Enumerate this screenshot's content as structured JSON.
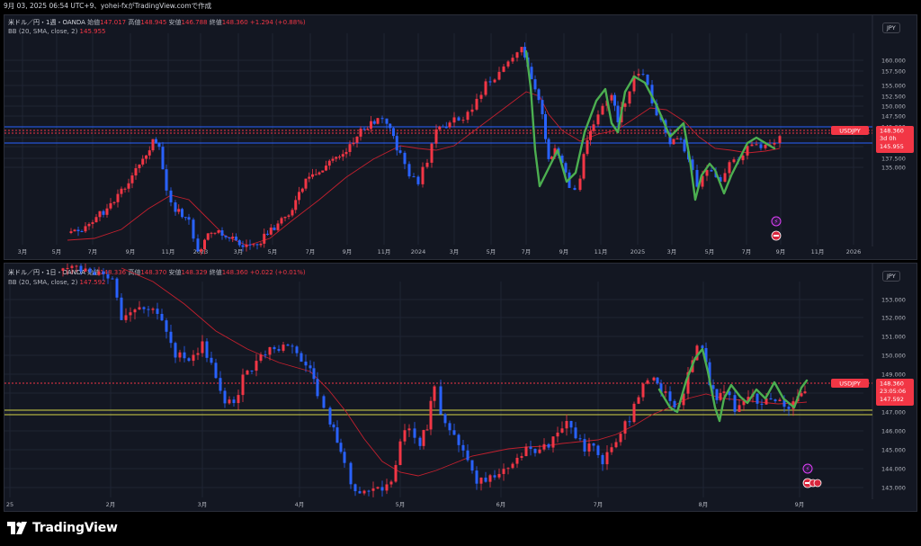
{
  "topbar": {
    "text": "9月 03, 2025 06:54 UTC+9、yohei-fxがTradingView.comで作成"
  },
  "panes": [
    {
      "id": "weekly",
      "legend": {
        "symbol": "米ドル／円・1週・OANDA",
        "open_l": "始値",
        "open": "147.017",
        "high_l": "高値",
        "high": "148.945",
        "low_l": "安値",
        "low": "146.788",
        "close_l": "終値",
        "close": "148.360",
        "change": "+1.294 (+0.88%)"
      },
      "bb": {
        "label": "BB (20, SMA, close, 2)",
        "value": "145.955"
      },
      "currency": "JPY",
      "yaxis": [
        "160.000",
        "157.500",
        "155.000",
        "152.500",
        "150.000",
        "147.500",
        "145.000",
        "142.500",
        "140.000",
        "137.500",
        "135.000",
        "132.500"
      ],
      "xaxis": [
        "3月",
        "5月",
        "7月",
        "9月",
        "11月",
        "2023",
        "3月",
        "5月",
        "7月",
        "9月",
        "11月",
        "2024",
        "3月",
        "5月",
        "7月",
        "9月",
        "11月",
        "2025",
        "3月",
        "5月",
        "7月",
        "9月",
        "11月",
        "2026"
      ],
      "price_tag": {
        "symbol": "USDJPY",
        "price": "148.360",
        "countdown": "3d 0h",
        "bb": "145.955"
      }
    },
    {
      "id": "daily",
      "legend": {
        "symbol": "米ドル／円・1日・OANDA",
        "open_l": "始値",
        "open": "148.336",
        "high_l": "高値",
        "high": "148.370",
        "low_l": "安値",
        "low": "148.329",
        "close_l": "終値",
        "close": "148.360",
        "change": "+0.022 (+0.01%)"
      },
      "bb": {
        "label": "BB (20, SMA, close, 2)",
        "value": "147.592"
      },
      "currency": "JPY",
      "yaxis": [
        "153.000",
        "152.000",
        "151.000",
        "150.000",
        "149.000",
        "148.000",
        "147.000",
        "146.000",
        "145.000",
        "144.000",
        "143.000"
      ],
      "xaxis": [
        "25",
        "2月",
        "3月",
        "4月",
        "5月",
        "6月",
        "7月",
        "8月",
        "9月"
      ],
      "price_tag": {
        "symbol": "USDJPY",
        "price": "148.360",
        "countdown": "23:05:06",
        "bb": "147.592"
      }
    }
  ],
  "brand": {
    "name": "TradingView"
  },
  "colors": {
    "up": "#f23645",
    "down": "#2962ff",
    "bb": "#c2202e",
    "green": "#4caf50",
    "yellow": "#d7d74a",
    "background": "#131722"
  }
}
